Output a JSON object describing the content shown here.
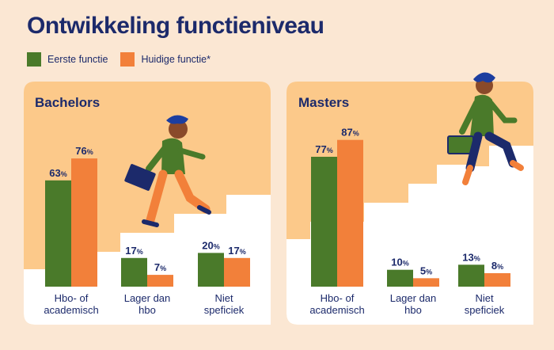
{
  "title": "Ontwikkeling functieniveau",
  "legend": {
    "first": "Eerste functie",
    "current": "Huidige functie*"
  },
  "colors": {
    "first": "#4a7a2a",
    "current": "#f2803a",
    "panel": "#fcc98a",
    "navy": "#1c2a6b"
  },
  "chart_data": [
    {
      "type": "bar",
      "title": "Bachelors",
      "categories": [
        [
          "Hbo- of",
          "academisch"
        ],
        [
          "Lager dan",
          "hbo"
        ],
        [
          "Niet",
          "speficiek"
        ]
      ],
      "series": [
        {
          "name": "Eerste functie",
          "values": [
            63,
            17,
            20
          ]
        },
        {
          "name": "Huidige functie*",
          "values": [
            76,
            7,
            17
          ]
        }
      ],
      "unit": "%"
    },
    {
      "type": "bar",
      "title": "Masters",
      "categories": [
        [
          "Hbo- of",
          "academisch"
        ],
        [
          "Lager dan",
          "hbo"
        ],
        [
          "Niet",
          "speficiek"
        ]
      ],
      "series": [
        {
          "name": "Eerste functie",
          "values": [
            77,
            10,
            13
          ]
        },
        {
          "name": "Huidige functie*",
          "values": [
            87,
            5,
            8
          ]
        }
      ],
      "unit": "%"
    }
  ]
}
